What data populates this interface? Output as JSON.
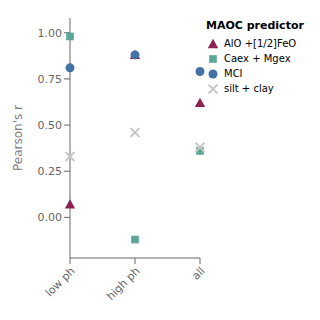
{
  "chart_data": {
    "type": "scatter",
    "categories": [
      "low ph",
      "high ph",
      "all"
    ],
    "series": [
      {
        "name": "AlO +[1/2]FeO",
        "color": "#8B2252",
        "marker": "triangle",
        "values": [
          0.07,
          0.88,
          0.62
        ]
      },
      {
        "name": "Caex + Mgex",
        "color": "#5BA899",
        "marker": "square",
        "values": [
          0.98,
          -0.12,
          0.36
        ]
      },
      {
        "name": "MCI",
        "color": "#4472A8",
        "marker": "circle",
        "values": [
          0.81,
          0.88,
          0.79
        ]
      },
      {
        "name": "silt + clay",
        "color": "#C8C8C8",
        "marker": "x",
        "values": [
          0.33,
          0.46,
          0.38
        ]
      }
    ],
    "ylabel": "Pearson's r",
    "ylim": [
      -0.22,
      1.08
    ],
    "yticks": [
      {
        "value": 0,
        "label": "0.00"
      },
      0.25,
      {
        "value": 0.5,
        "label": "0.50"
      },
      0.75,
      {
        "value": 1,
        "label": "1.00"
      }
    ],
    "grid": false,
    "legend": "right",
    "legend_title": "MAOC predictor"
  }
}
